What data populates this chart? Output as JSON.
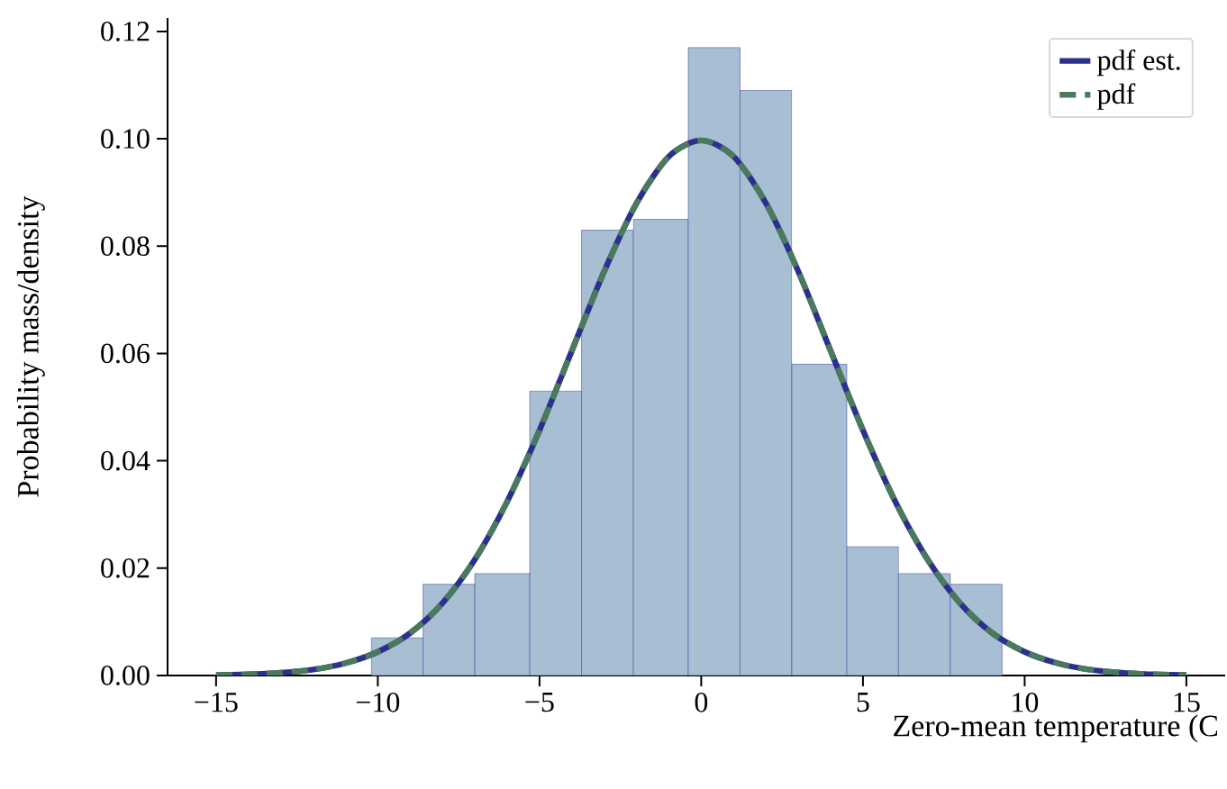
{
  "chart_data": {
    "type": "histogram",
    "xlabel": "Zero-mean temperature (C",
    "ylabel": "Probability mass/density",
    "xlim": [
      -16.5,
      16.2
    ],
    "ylim": [
      0,
      0.1225
    ],
    "xticks": [
      {
        "value": -15,
        "label": "−15"
      },
      {
        "value": -10,
        "label": "−10"
      },
      {
        "value": -5,
        "label": "−5"
      },
      0,
      5,
      10,
      15
    ],
    "yticks": [
      {
        "value": 0,
        "label": "0.00"
      },
      {
        "value": 0.02,
        "label": "0.02"
      },
      {
        "value": 0.04,
        "label": "0.04"
      },
      {
        "value": 0.06,
        "label": "0.06"
      },
      {
        "value": 0.08,
        "label": "0.08"
      },
      {
        "value": 0.1,
        "label": "0.10"
      },
      {
        "value": 0.12,
        "label": "0.12"
      }
    ],
    "legend": "top right",
    "series": [
      {
        "color": "#a7bed3",
        "bins": [
          -10.2,
          -8.6,
          -7.0,
          -5.3,
          -3.7,
          -2.1,
          -0.4,
          1.2,
          2.8,
          4.5,
          6.1,
          7.7,
          9.3
        ],
        "values": [
          0.007,
          0.017,
          0.019,
          0.053,
          0.083,
          0.085,
          0.117,
          0.109,
          0.058,
          0.024,
          0.019,
          0.017
        ]
      },
      {
        "type": "line",
        "name": "pdf est.",
        "color": "#2b2f8e",
        "line_style": "solid",
        "x": [
          -15,
          -14,
          -13,
          -12,
          -11,
          -10,
          -9,
          -8,
          -7,
          -6,
          -5,
          -4,
          -3,
          -2,
          -1,
          0,
          1,
          2,
          3,
          4,
          5,
          6,
          7,
          8,
          9,
          10,
          11,
          12,
          13,
          14,
          15
        ],
        "values": [
          0.0001,
          0.0002,
          0.0005,
          0.0011,
          0.0023,
          0.0044,
          0.0079,
          0.0135,
          0.0216,
          0.0324,
          0.0457,
          0.0605,
          0.0753,
          0.088,
          0.0967,
          0.0997,
          0.0967,
          0.088,
          0.0753,
          0.0605,
          0.0457,
          0.0324,
          0.0216,
          0.0135,
          0.0079,
          0.0044,
          0.0023,
          0.0011,
          0.0005,
          0.0002,
          0.0001
        ]
      },
      {
        "type": "line",
        "name": "pdf",
        "color": "#4a7a5c",
        "line_style": "dashed",
        "x": [
          -15,
          -14,
          -13,
          -12,
          -11,
          -10,
          -9,
          -8,
          -7,
          -6,
          -5,
          -4,
          -3,
          -2,
          -1,
          0,
          1,
          2,
          3,
          4,
          5,
          6,
          7,
          8,
          9,
          10,
          11,
          12,
          13,
          14,
          15
        ],
        "values": [
          0.0001,
          0.0002,
          0.0005,
          0.0011,
          0.0023,
          0.0044,
          0.0079,
          0.0135,
          0.0216,
          0.0324,
          0.0457,
          0.0605,
          0.0753,
          0.088,
          0.0967,
          0.0997,
          0.0967,
          0.088,
          0.0753,
          0.0605,
          0.0457,
          0.0324,
          0.0216,
          0.0135,
          0.0079,
          0.0044,
          0.0023,
          0.0011,
          0.0005,
          0.0002,
          0.0001
        ]
      }
    ]
  }
}
